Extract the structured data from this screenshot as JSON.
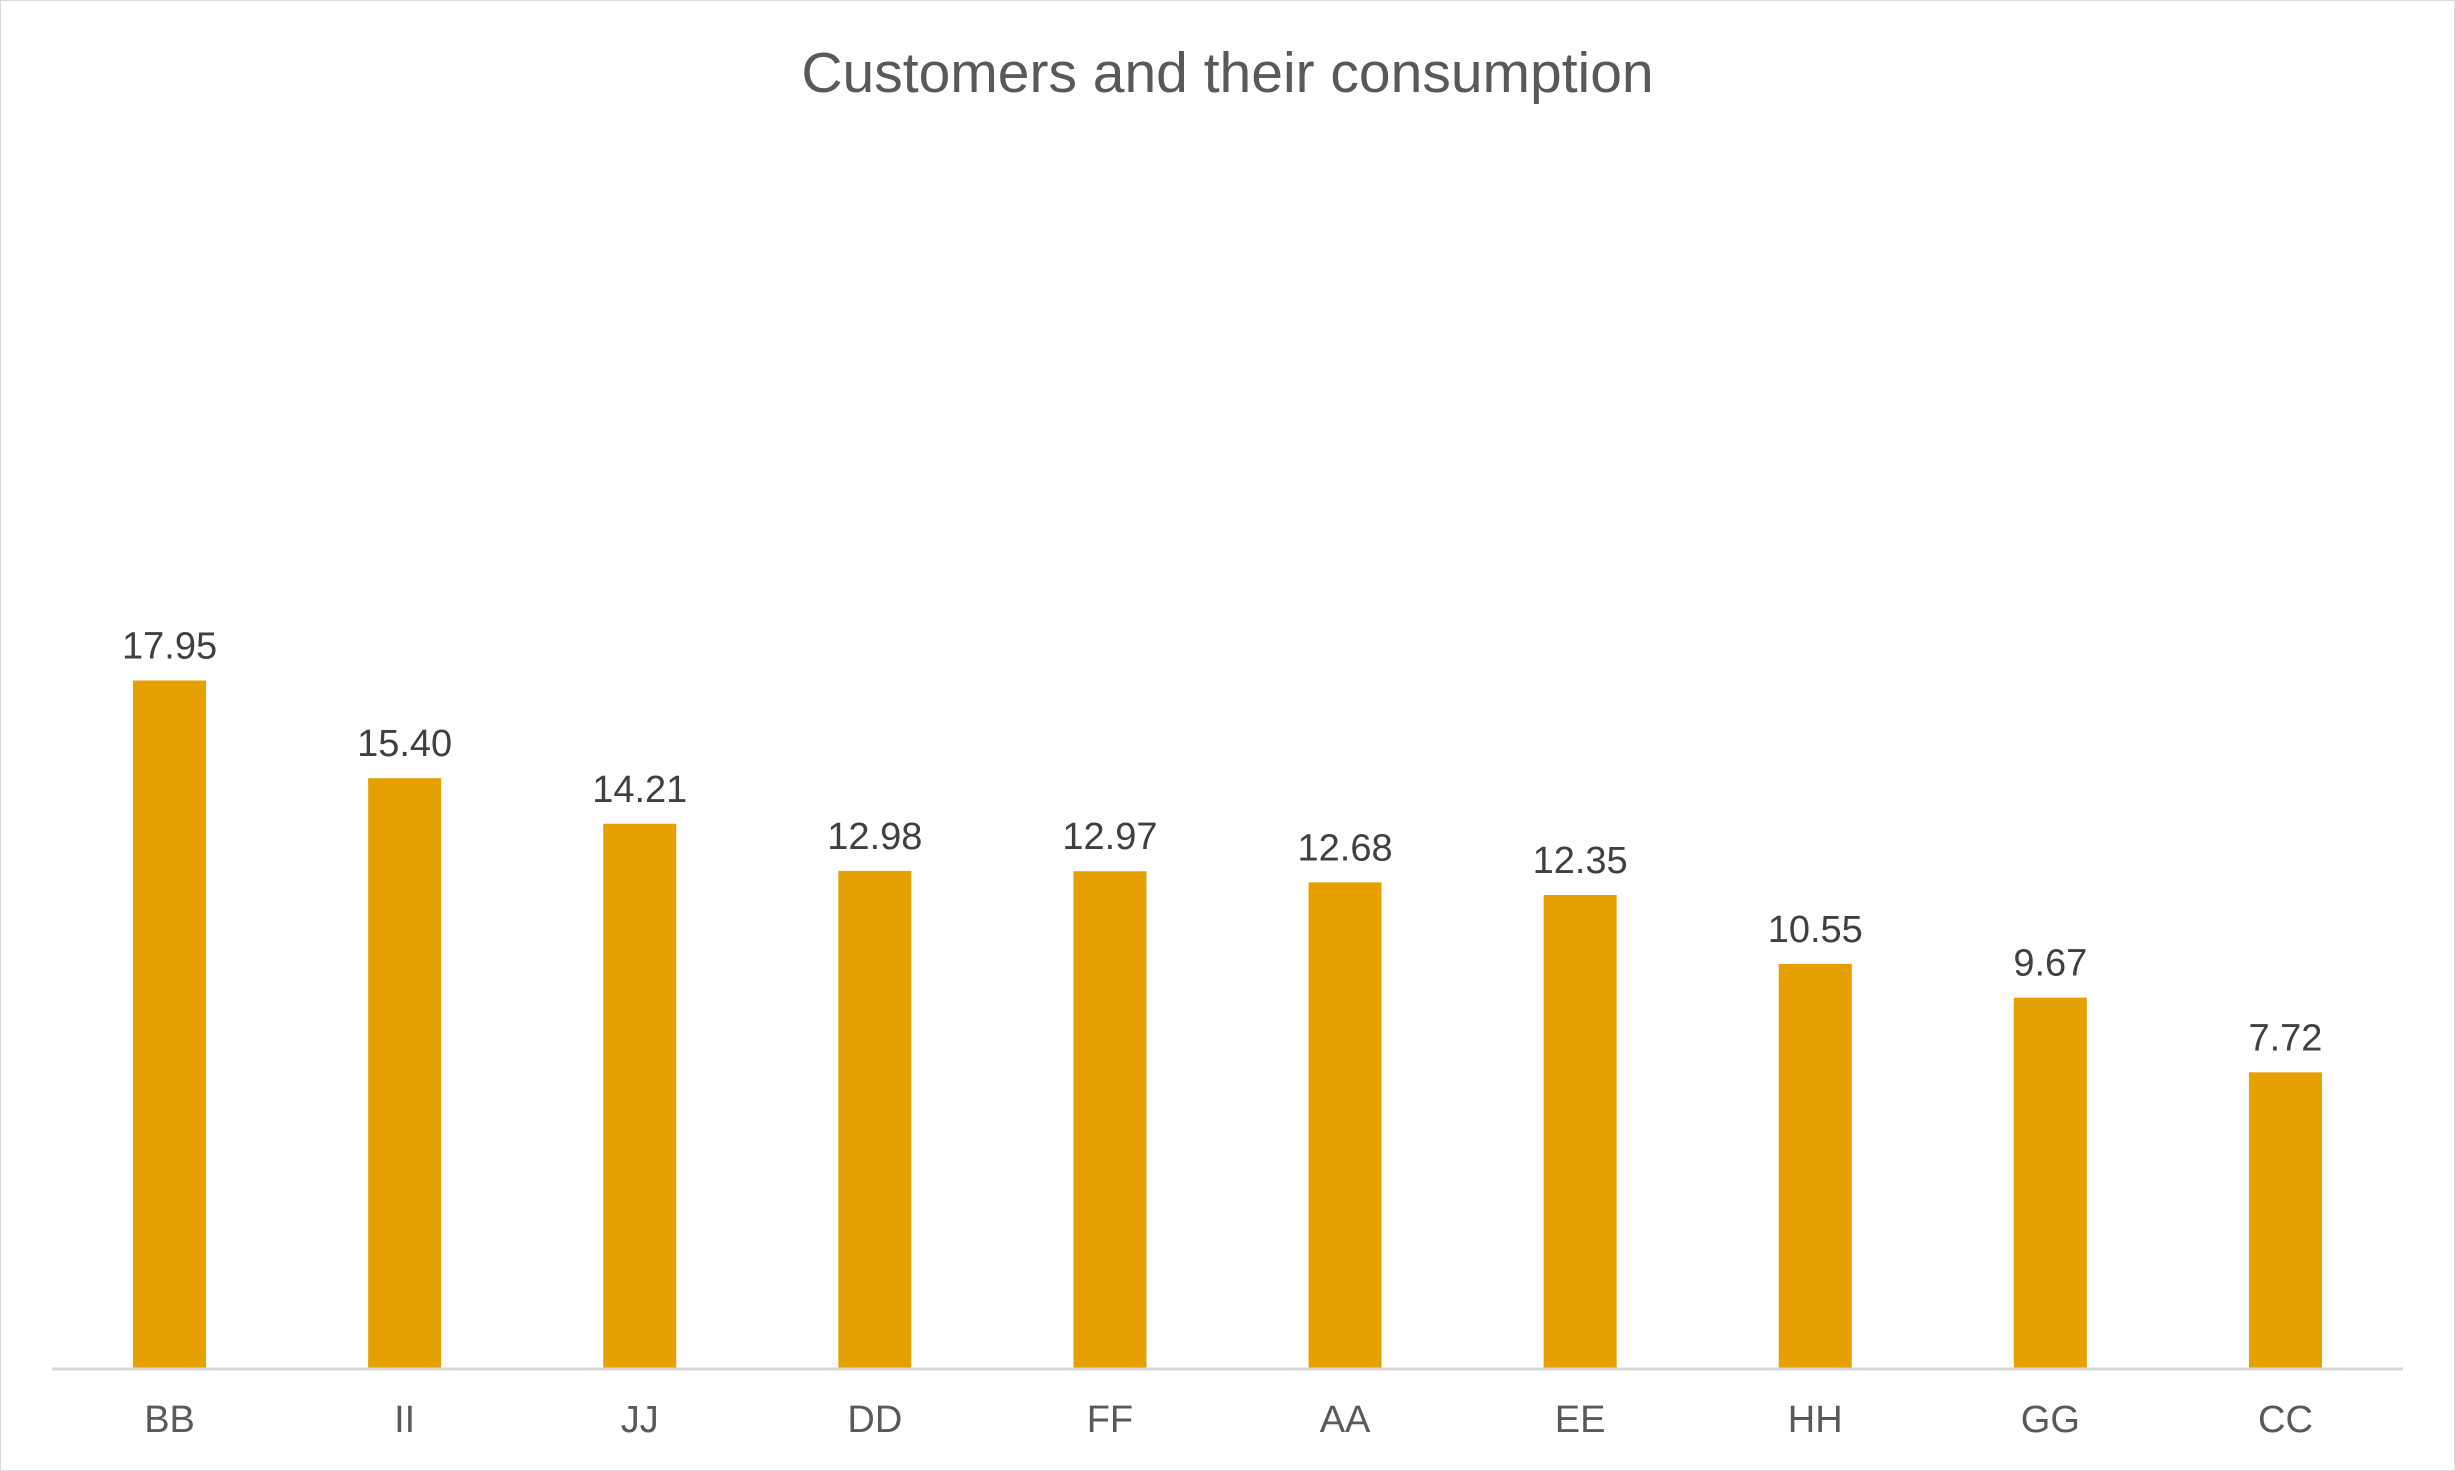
{
  "chart_data": {
    "type": "bar",
    "title": "Customers and their consumption",
    "xlabel": "",
    "ylabel": "",
    "categories": [
      "BB",
      "II",
      "JJ",
      "DD",
      "FF",
      "AA",
      "EE",
      "HH",
      "GG",
      "CC"
    ],
    "values": [
      17.95,
      15.4,
      14.21,
      12.98,
      12.97,
      12.68,
      12.35,
      10.55,
      9.67,
      7.72
    ],
    "data_labels": [
      "17.95",
      "15.40",
      "14.21",
      "12.98",
      "12.97",
      "12.68",
      "12.35",
      "10.55",
      "9.67",
      "7.72"
    ],
    "ylim": [
      0,
      20
    ],
    "grid": false,
    "legend": "none",
    "bar_color": "#E6A000",
    "axis_color": "#d9d9d9"
  }
}
